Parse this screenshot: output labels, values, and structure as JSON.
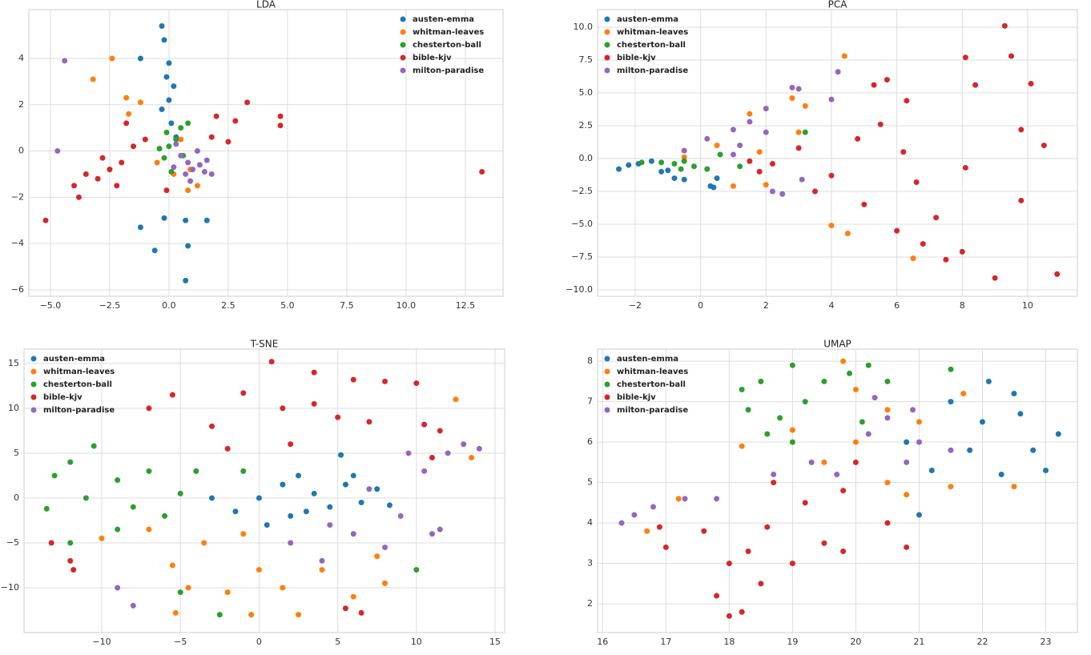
{
  "chart_data": [
    {
      "type": "scatter",
      "title": "LDA",
      "grid": true,
      "legend": "upper right",
      "xlim": [
        -5.91,
        14.09
      ],
      "ylim": [
        -6.28,
        6.11
      ],
      "xticks": [
        {
          "value": -5,
          "label": "−5.0"
        },
        {
          "value": -2.5,
          "label": "−2.5"
        },
        {
          "value": 0,
          "label": "0.0"
        },
        2.5,
        {
          "value": 5,
          "label": "5.0"
        },
        7.5,
        {
          "value": 10,
          "label": "10.0"
        },
        12.5
      ],
      "yticks": [
        {
          "value": -6,
          "label": "−6"
        },
        {
          "value": -4,
          "label": "−4"
        },
        {
          "value": -2,
          "label": "−2"
        },
        0,
        2,
        4
      ],
      "series": [
        {
          "name": "austen-emma",
          "color": "#1f77b4",
          "x": [
            -0.3,
            -0.2,
            0,
            -0.1,
            0.2,
            0,
            -0.3,
            0.1,
            -1.2,
            0.3,
            0.7,
            -0.6,
            0.8,
            0.7,
            -1.2,
            1.6,
            -0.2
          ],
          "y": [
            5.4,
            4.8,
            3.8,
            3.2,
            2.8,
            2.2,
            1.8,
            1.2,
            4.0,
            0.6,
            -3.0,
            -4.3,
            -4.1,
            -5.6,
            -3.3,
            -3.0,
            -2.9
          ]
        },
        {
          "name": "whitman-leaves",
          "color": "#ff7f0e",
          "x": [
            -2.4,
            -3.2,
            -1.7,
            -1.2,
            0.5,
            0.9,
            1.2,
            0.8,
            -0.5,
            0.2,
            -1.8
          ],
          "y": [
            4.0,
            3.1,
            1.6,
            2.1,
            0.5,
            -0.8,
            -1.5,
            -1.7,
            -0.5,
            -1.0,
            2.3
          ]
        },
        {
          "name": "chesterton-ball",
          "color": "#2ca02c",
          "x": [
            0,
            -0.2,
            0.5,
            0.3,
            -0.4,
            0.6,
            0.1,
            0.8,
            -0.1
          ],
          "y": [
            0.2,
            -0.3,
            1.0,
            0.5,
            0.1,
            -0.2,
            -0.9,
            1.2,
            0.8
          ]
        },
        {
          "name": "bible-kjv",
          "color": "#d62728",
          "x": [
            -5.2,
            -4.0,
            -3.5,
            -3.0,
            -2.5,
            -2.2,
            -2.0,
            -1.5,
            -1.8,
            -1.0,
            -3.8,
            -2.8,
            2.0,
            2.8,
            3.3,
            4.7,
            4.7,
            13.2,
            1.8,
            -0.1,
            2.5
          ],
          "y": [
            -3.0,
            -1.5,
            -1.0,
            -1.2,
            -0.8,
            -1.5,
            -0.5,
            0.2,
            1.2,
            0.5,
            -2.0,
            -0.3,
            1.5,
            1.3,
            2.1,
            1.5,
            1.1,
            -0.9,
            0.6,
            -1.7,
            0.4
          ]
        },
        {
          "name": "milton-paradise",
          "color": "#9467bd",
          "x": [
            -4.4,
            -4.7,
            0.8,
            1.0,
            1.3,
            0.5,
            0.7,
            1.5,
            1.2,
            0.3,
            1.8,
            0.9,
            0.2,
            1.6
          ],
          "y": [
            3.9,
            0,
            -0.5,
            -0.8,
            -0.6,
            -0.2,
            -1.0,
            -0.9,
            0,
            0.3,
            -1.0,
            -1.3,
            -0.7,
            -0.4
          ]
        }
      ]
    },
    {
      "type": "scatter",
      "title": "PCA",
      "grid": true,
      "legend": "upper left",
      "xlim": [
        -3.15,
        11.52
      ],
      "ylim": [
        -10.49,
        11.34
      ],
      "xticks": [
        {
          "value": -2,
          "label": "−2"
        },
        0,
        2,
        4,
        6,
        8,
        10
      ],
      "yticks": [
        {
          "value": -10,
          "label": "−10.0"
        },
        {
          "value": -7.5,
          "label": "−7.5"
        },
        {
          "value": -5,
          "label": "−5.0"
        },
        {
          "value": -2.5,
          "label": "−2.5"
        },
        {
          "value": 0,
          "label": "0.0"
        },
        2.5,
        {
          "value": 5,
          "label": "5.0"
        },
        7.5,
        {
          "value": 10,
          "label": "10.0"
        }
      ],
      "series": [
        {
          "name": "austen-emma",
          "color": "#1f77b4",
          "x": [
            -2.5,
            -2.2,
            -1.9,
            -1.5,
            -1.2,
            -0.8,
            -0.5,
            0.3,
            0.5,
            -1.0,
            0.4
          ],
          "y": [
            -0.8,
            -0.5,
            -0.4,
            -0.2,
            -1.0,
            -1.5,
            -1.6,
            -2.1,
            -1.5,
            -0.9,
            -2.2
          ]
        },
        {
          "name": "whitman-leaves",
          "color": "#ff7f0e",
          "x": [
            4.4,
            4.0,
            4.5,
            6.5,
            1.5,
            2.8,
            3.2,
            0.5,
            1.0,
            2.0,
            3.0,
            -0.5,
            1.8
          ],
          "y": [
            7.8,
            -5.1,
            -5.7,
            -7.6,
            3.4,
            4.6,
            4.0,
            1.0,
            -2.1,
            -2.0,
            2.0,
            0.1,
            0.5
          ]
        },
        {
          "name": "chesterton-ball",
          "color": "#2ca02c",
          "x": [
            -1.8,
            -1.2,
            -0.8,
            -0.5,
            -0.2,
            0.2,
            0.6,
            -0.6,
            1.2,
            3.2
          ],
          "y": [
            -0.3,
            -0.3,
            -0.4,
            -0.2,
            -0.6,
            -0.8,
            0.3,
            -0.8,
            -0.6,
            2.0
          ]
        },
        {
          "name": "bible-kjv",
          "color": "#d62728",
          "x": [
            9.3,
            9.5,
            8.1,
            10.1,
            8.4,
            5.3,
            5.7,
            6.3,
            9.8,
            10.5,
            8.1,
            9.8,
            10.9,
            9.0,
            8.0,
            7.5,
            6.8,
            6.0,
            5.0,
            3.5,
            3.0,
            2.2,
            1.5,
            4.8,
            5.5,
            7.2,
            6.6,
            1.8,
            4.0,
            6.2
          ],
          "y": [
            10.1,
            7.8,
            7.7,
            5.7,
            5.6,
            5.6,
            6.0,
            4.4,
            2.2,
            1.0,
            -0.7,
            -3.2,
            -8.8,
            -9.1,
            -7.1,
            -7.7,
            -6.5,
            -5.5,
            -3.5,
            -2.5,
            0.8,
            -0.4,
            -0.2,
            1.5,
            2.6,
            -4.5,
            -1.8,
            -1.0,
            -1.3,
            0.5
          ]
        },
        {
          "name": "milton-paradise",
          "color": "#9467bd",
          "x": [
            4.2,
            3.0,
            2.8,
            2.0,
            1.5,
            1.0,
            0.2,
            -0.5,
            1.2,
            2.0,
            2.2,
            2.5,
            4.0,
            3.1,
            1.0
          ],
          "y": [
            6.6,
            5.3,
            5.4,
            3.8,
            2.8,
            2.2,
            1.5,
            0.6,
            1.0,
            2.0,
            -2.5,
            -2.7,
            4.5,
            -1.6,
            0.3
          ]
        }
      ]
    },
    {
      "type": "scatter",
      "title": "T-SNE",
      "grid": true,
      "legend": "upper left",
      "xlim": [
        -14.94,
        15.61
      ],
      "ylim": [
        -15.0,
        16.6
      ],
      "xticks": [
        {
          "value": -10,
          "label": "−10"
        },
        {
          "value": -5,
          "label": "−5"
        },
        0,
        5,
        10,
        15
      ],
      "yticks": [
        {
          "value": -10,
          "label": "−10"
        },
        {
          "value": -5,
          "label": "−5"
        },
        0,
        5,
        10,
        15
      ],
      "series": [
        {
          "name": "austen-emma",
          "color": "#1f77b4",
          "x": [
            0,
            1.5,
            2.5,
            3.5,
            4.5,
            5.5,
            6.5,
            7.5,
            8.3,
            2.0,
            0.5,
            -1.5,
            -3,
            5.2,
            3.0,
            6.0
          ],
          "y": [
            0,
            1.5,
            2.5,
            0.5,
            -1.0,
            1.5,
            -0.5,
            1.0,
            -0.8,
            -2.0,
            -3.0,
            -1.5,
            0,
            4.8,
            -1.5,
            2.5
          ]
        },
        {
          "name": "whitman-leaves",
          "color": "#ff7f0e",
          "x": [
            -10,
            -7,
            -5.5,
            -4.5,
            -2,
            -0.5,
            1.5,
            4,
            6,
            7.5,
            -3.5,
            -1,
            2.5,
            12.5,
            13.5,
            8,
            -5.3,
            0
          ],
          "y": [
            -4.5,
            -3.5,
            -7.5,
            -10,
            -10.5,
            -13,
            -10,
            -8,
            -11,
            -6.5,
            -5,
            -4,
            -13,
            11,
            4.5,
            -9.5,
            -12.8,
            -8
          ]
        },
        {
          "name": "chesterton-ball",
          "color": "#2ca02c",
          "x": [
            -13,
            -12,
            -10.5,
            -11,
            -9,
            -8,
            -7,
            -6,
            -5,
            -4,
            -13.5,
            -12,
            -9,
            -2.5,
            10,
            -5,
            -1
          ],
          "y": [
            2.5,
            4,
            5.8,
            0,
            2,
            -1,
            3,
            -2,
            0.5,
            3,
            -1.2,
            -5,
            -3.5,
            -13,
            -8,
            -10.5,
            3
          ]
        },
        {
          "name": "bible-kjv",
          "color": "#d62728",
          "x": [
            0.8,
            3.5,
            6,
            8,
            10,
            -5.5,
            -1,
            1.5,
            3.5,
            5,
            7,
            10.5,
            11.5,
            -7,
            -3,
            -13.2,
            -11.8,
            -12,
            6.5,
            5.5,
            11,
            -2,
            2
          ],
          "y": [
            15.2,
            14,
            13.2,
            13,
            12.8,
            11.5,
            11.7,
            10,
            10.5,
            9,
            8.5,
            8.2,
            7.5,
            10,
            8,
            -5,
            -8,
            -7,
            -12.8,
            -12.3,
            4.5,
            5.5,
            6
          ]
        },
        {
          "name": "milton-paradise",
          "color": "#9467bd",
          "x": [
            13,
            14,
            12,
            10.5,
            9,
            11,
            8,
            6,
            4,
            2,
            9.5,
            7,
            -9,
            -8,
            11.5,
            4.5
          ],
          "y": [
            6,
            5.5,
            5,
            3,
            -2,
            -4,
            -5.5,
            -4,
            -7,
            -5,
            5,
            1,
            -10,
            -12,
            -3.5,
            -3
          ]
        }
      ]
    },
    {
      "type": "scatter",
      "title": "UMAP",
      "grid": true,
      "legend": "upper left",
      "xlim": [
        15.92,
        23.5
      ],
      "ylim": [
        1.29,
        8.3
      ],
      "xticks": [
        16,
        17,
        18,
        19,
        20,
        21,
        22,
        23
      ],
      "yticks": [
        2,
        3,
        4,
        5,
        6,
        7,
        8
      ],
      "series": [
        {
          "name": "austen-emma",
          "color": "#1f77b4",
          "x": [
            22.1,
            22.5,
            23.2,
            22.8,
            22.0,
            21.5,
            22.3,
            23,
            21.8,
            22.6,
            21,
            21.2,
            20.8
          ],
          "y": [
            7.5,
            7.2,
            6.2,
            5.8,
            6.5,
            7.0,
            5.2,
            5.3,
            5.8,
            6.7,
            4.2,
            5.3,
            6.0
          ]
        },
        {
          "name": "whitman-leaves",
          "color": "#ff7f0e",
          "x": [
            19.8,
            20,
            20.5,
            21,
            20,
            19.5,
            20.5,
            21.5,
            19,
            18.2,
            20.8,
            16.7,
            17.2,
            22.5,
            21.7
          ],
          "y": [
            8.0,
            7.3,
            6.8,
            6.5,
            6.0,
            5.5,
            5.0,
            4.9,
            6.3,
            5.9,
            4.7,
            3.8,
            4.6,
            4.9,
            7.2
          ]
        },
        {
          "name": "chesterton-ball",
          "color": "#2ca02c",
          "x": [
            18.2,
            18.5,
            19,
            19.5,
            18.3,
            18.8,
            19.2,
            19.9,
            20.2,
            20.5,
            19,
            21.5,
            20.1,
            18.6
          ],
          "y": [
            7.3,
            7.5,
            7.9,
            7.5,
            6.8,
            6.6,
            7.0,
            7.7,
            7.9,
            7.5,
            6.0,
            7.8,
            6.5,
            6.2
          ]
        },
        {
          "name": "bible-kjv",
          "color": "#d62728",
          "x": [
            18,
            18.2,
            17.8,
            18.5,
            18.0,
            18.3,
            17.6,
            19.0,
            19.5,
            19.2,
            19.8,
            18.7,
            20.5,
            20.8,
            17.0,
            16.9,
            18.6,
            19.8,
            20.0
          ],
          "y": [
            1.7,
            1.8,
            2.2,
            2.5,
            3.0,
            3.3,
            3.8,
            3.0,
            3.5,
            4.5,
            4.8,
            5.0,
            4.0,
            3.4,
            3.4,
            3.9,
            3.9,
            3.3,
            5.5
          ]
        },
        {
          "name": "milton-paradise",
          "color": "#9467bd",
          "x": [
            16.3,
            16.5,
            16.8,
            17.3,
            17.8,
            18.7,
            19.3,
            20.2,
            20.5,
            21,
            20.8,
            21.5,
            20.3,
            19.7,
            20.9
          ],
          "y": [
            4.0,
            4.2,
            4.4,
            4.6,
            4.6,
            5.2,
            5.5,
            6.2,
            6.6,
            6.0,
            5.5,
            5.8,
            7.1,
            5.2,
            6.8
          ]
        }
      ]
    }
  ]
}
